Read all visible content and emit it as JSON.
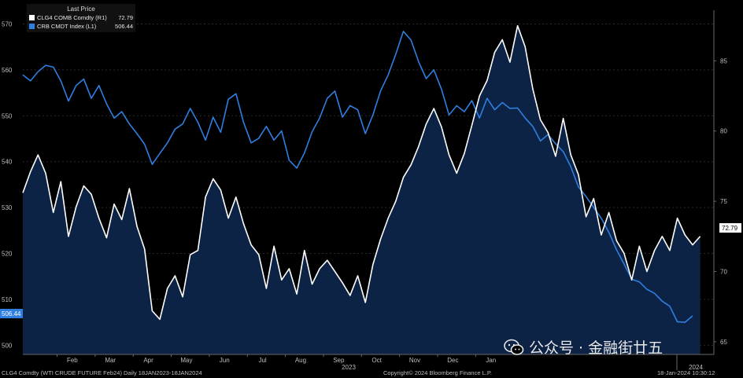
{
  "chart_data": {
    "type": "line",
    "title": "Last Price",
    "series": [
      {
        "name": "CLG4 COMB Comdty",
        "axis": "R1",
        "last_value": "72.79",
        "color": "#ffffff",
        "style": "line-with-fill"
      },
      {
        "name": "CRB CMDT Index",
        "axis": "L1",
        "last_value": "506.44",
        "color": "#2f7fe0",
        "style": "line"
      }
    ],
    "left_axis": {
      "ylim": [
        498,
        573
      ],
      "ticks": [
        "500",
        "510",
        "520",
        "530",
        "540",
        "550",
        "560",
        "570"
      ]
    },
    "right_axis": {
      "ylim": [
        64.1,
        88.6
      ],
      "ticks": [
        "65",
        "70",
        "75",
        "80",
        "85"
      ]
    },
    "x_axis": {
      "labels": [
        "Feb",
        "Mar",
        "Apr",
        "May",
        "Jun",
        "Jul",
        "Aug",
        "Sep",
        "Oct",
        "Nov",
        "Dec",
        "Jan"
      ],
      "year_labels": [
        "2023",
        "2024"
      ]
    },
    "wti_points": [
      [
        0,
        75.6
      ],
      [
        0.2,
        77.1
      ],
      [
        0.4,
        78.3
      ],
      [
        0.6,
        77.0
      ],
      [
        0.8,
        74.2
      ],
      [
        1.0,
        76.4
      ],
      [
        1.2,
        72.5
      ],
      [
        1.4,
        74.6
      ],
      [
        1.6,
        76.1
      ],
      [
        1.8,
        75.5
      ],
      [
        2.0,
        73.8
      ],
      [
        2.2,
        72.4
      ],
      [
        2.4,
        74.8
      ],
      [
        2.6,
        73.7
      ],
      [
        2.8,
        75.9
      ],
      [
        3.0,
        73.2
      ],
      [
        3.2,
        71.6
      ],
      [
        3.4,
        67.2
      ],
      [
        3.6,
        66.6
      ],
      [
        3.8,
        68.8
      ],
      [
        4.0,
        69.7
      ],
      [
        4.2,
        68.2
      ],
      [
        4.4,
        71.2
      ],
      [
        4.6,
        71.5
      ],
      [
        4.8,
        75.3
      ],
      [
        5.0,
        76.6
      ],
      [
        5.2,
        75.8
      ],
      [
        5.4,
        73.8
      ],
      [
        5.6,
        75.3
      ],
      [
        5.8,
        73.4
      ],
      [
        6.0,
        71.9
      ],
      [
        6.2,
        71.2
      ],
      [
        6.4,
        68.8
      ],
      [
        6.6,
        71.8
      ],
      [
        6.8,
        69.4
      ],
      [
        7.0,
        70.2
      ],
      [
        7.2,
        68.4
      ],
      [
        7.4,
        71.5
      ],
      [
        7.6,
        69.1
      ],
      [
        7.8,
        70.2
      ],
      [
        8.0,
        70.8
      ],
      [
        8.2,
        70.0
      ],
      [
        8.4,
        69.2
      ],
      [
        8.6,
        68.3
      ],
      [
        8.8,
        69.7
      ],
      [
        9.0,
        67.8
      ],
      [
        9.2,
        70.5
      ],
      [
        9.4,
        72.3
      ],
      [
        9.6,
        73.8
      ],
      [
        9.8,
        75.0
      ],
      [
        10.0,
        76.7
      ],
      [
        10.2,
        77.6
      ],
      [
        10.4,
        78.9
      ],
      [
        10.6,
        80.5
      ],
      [
        10.8,
        81.6
      ],
      [
        11.0,
        80.3
      ],
      [
        11.2,
        78.3
      ],
      [
        11.4,
        77.0
      ],
      [
        11.6,
        78.4
      ],
      [
        11.8,
        80.4
      ],
      [
        12.0,
        82.5
      ],
      [
        12.2,
        83.6
      ],
      [
        12.4,
        85.6
      ],
      [
        12.6,
        86.5
      ],
      [
        12.8,
        84.9
      ],
      [
        13.0,
        87.5
      ],
      [
        13.2,
        86.0
      ],
      [
        13.4,
        83.0
      ],
      [
        13.6,
        80.8
      ],
      [
        13.8,
        79.9
      ],
      [
        14.0,
        78.2
      ],
      [
        14.2,
        80.9
      ],
      [
        14.4,
        78.3
      ],
      [
        14.6,
        76.9
      ],
      [
        14.8,
        73.9
      ],
      [
        15.0,
        75.2
      ],
      [
        15.2,
        72.6
      ],
      [
        15.4,
        74.2
      ],
      [
        15.6,
        72.2
      ],
      [
        15.8,
        71.3
      ],
      [
        16.0,
        69.4
      ],
      [
        16.2,
        71.8
      ],
      [
        16.4,
        70.0
      ],
      [
        16.6,
        71.5
      ],
      [
        16.8,
        72.5
      ],
      [
        17.0,
        71.5
      ],
      [
        17.2,
        73.8
      ],
      [
        17.4,
        72.6
      ],
      [
        17.6,
        71.9
      ],
      [
        17.8,
        72.5
      ]
    ],
    "crb_points": [
      [
        0,
        558.9
      ],
      [
        0.2,
        557.6
      ],
      [
        0.4,
        559.6
      ],
      [
        0.6,
        561.0
      ],
      [
        0.8,
        560.6
      ],
      [
        1.0,
        557.6
      ],
      [
        1.2,
        553.2
      ],
      [
        1.4,
        556.6
      ],
      [
        1.6,
        558.0
      ],
      [
        1.8,
        553.8
      ],
      [
        2.0,
        556.6
      ],
      [
        2.2,
        552.6
      ],
      [
        2.4,
        549.5
      ],
      [
        2.6,
        550.9
      ],
      [
        2.8,
        548.2
      ],
      [
        3.0,
        546.1
      ],
      [
        3.2,
        543.8
      ],
      [
        3.4,
        539.4
      ],
      [
        3.6,
        541.8
      ],
      [
        3.8,
        544.1
      ],
      [
        4.0,
        547.1
      ],
      [
        4.2,
        548.2
      ],
      [
        4.4,
        551.6
      ],
      [
        4.6,
        548.6
      ],
      [
        4.8,
        544.7
      ],
      [
        5.0,
        549.7
      ],
      [
        5.2,
        546.4
      ],
      [
        5.4,
        553.6
      ],
      [
        5.6,
        554.8
      ],
      [
        5.8,
        548.6
      ],
      [
        6.0,
        544.1
      ],
      [
        6.2,
        545.1
      ],
      [
        6.4,
        547.7
      ],
      [
        6.6,
        544.7
      ],
      [
        6.8,
        546.7
      ],
      [
        7.0,
        540.3
      ],
      [
        7.2,
        538.6
      ],
      [
        7.4,
        541.9
      ],
      [
        7.6,
        546.5
      ],
      [
        7.8,
        549.5
      ],
      [
        8.0,
        553.8
      ],
      [
        8.2,
        555.4
      ],
      [
        8.4,
        549.7
      ],
      [
        8.6,
        552.2
      ],
      [
        8.8,
        551.3
      ],
      [
        9.0,
        546.1
      ],
      [
        9.2,
        550.2
      ],
      [
        9.4,
        555.4
      ],
      [
        9.6,
        558.9
      ],
      [
        9.8,
        563.4
      ],
      [
        10.0,
        568.4
      ],
      [
        10.2,
        566.5
      ],
      [
        10.4,
        561.8
      ],
      [
        10.6,
        558.1
      ],
      [
        10.8,
        560.0
      ],
      [
        11.0,
        555.8
      ],
      [
        11.2,
        550.2
      ],
      [
        11.4,
        552.2
      ],
      [
        11.6,
        550.9
      ],
      [
        11.8,
        553.3
      ],
      [
        12.0,
        549.5
      ],
      [
        12.2,
        553.8
      ],
      [
        12.4,
        551.3
      ],
      [
        12.6,
        552.9
      ],
      [
        12.8,
        551.6
      ],
      [
        13.0,
        551.7
      ],
      [
        13.2,
        549.5
      ],
      [
        13.4,
        547.7
      ],
      [
        13.6,
        544.5
      ],
      [
        13.8,
        545.9
      ],
      [
        14.0,
        543.9
      ],
      [
        14.2,
        542.2
      ],
      [
        14.4,
        538.9
      ],
      [
        14.6,
        534.5
      ],
      [
        14.8,
        532.4
      ],
      [
        15.0,
        530.0
      ],
      [
        15.2,
        527.7
      ],
      [
        15.4,
        524.6
      ],
      [
        15.6,
        520.8
      ],
      [
        15.8,
        517.7
      ],
      [
        16.0,
        514.4
      ],
      [
        16.2,
        513.8
      ],
      [
        16.4,
        512.2
      ],
      [
        16.6,
        511.3
      ],
      [
        16.8,
        509.6
      ],
      [
        17.0,
        508.5
      ],
      [
        17.2,
        505.1
      ],
      [
        17.4,
        505.0
      ],
      [
        17.6,
        506.4
      ]
    ]
  },
  "legend": {
    "header": "Last Price",
    "row1_name": "CLG4 COMB Comdty  (R1)",
    "row1_value": "72.79",
    "row2_name": "CRB CMDT Index  (L1)",
    "row2_value": "506.44"
  },
  "badges": {
    "left_value": "506.44",
    "right_value": "72.79"
  },
  "footer": {
    "left": "CLG4 Comdty (WTI CRUDE FUTURE  Feb24)  Daily 18JAN2023-18JAN2024",
    "center": "Copyright© 2024 Bloomberg Finance L.P.",
    "right": "18-Jan-2024  10:30:12"
  },
  "watermark": {
    "text": "公众号 · 金融街廿五"
  },
  "colors": {
    "wti_line": "#ffffff",
    "wti_fill": "#0c2346",
    "crb_line": "#2f7fe0",
    "badge_white": "#ffffff",
    "badge_blue": "#2f7fe0"
  }
}
